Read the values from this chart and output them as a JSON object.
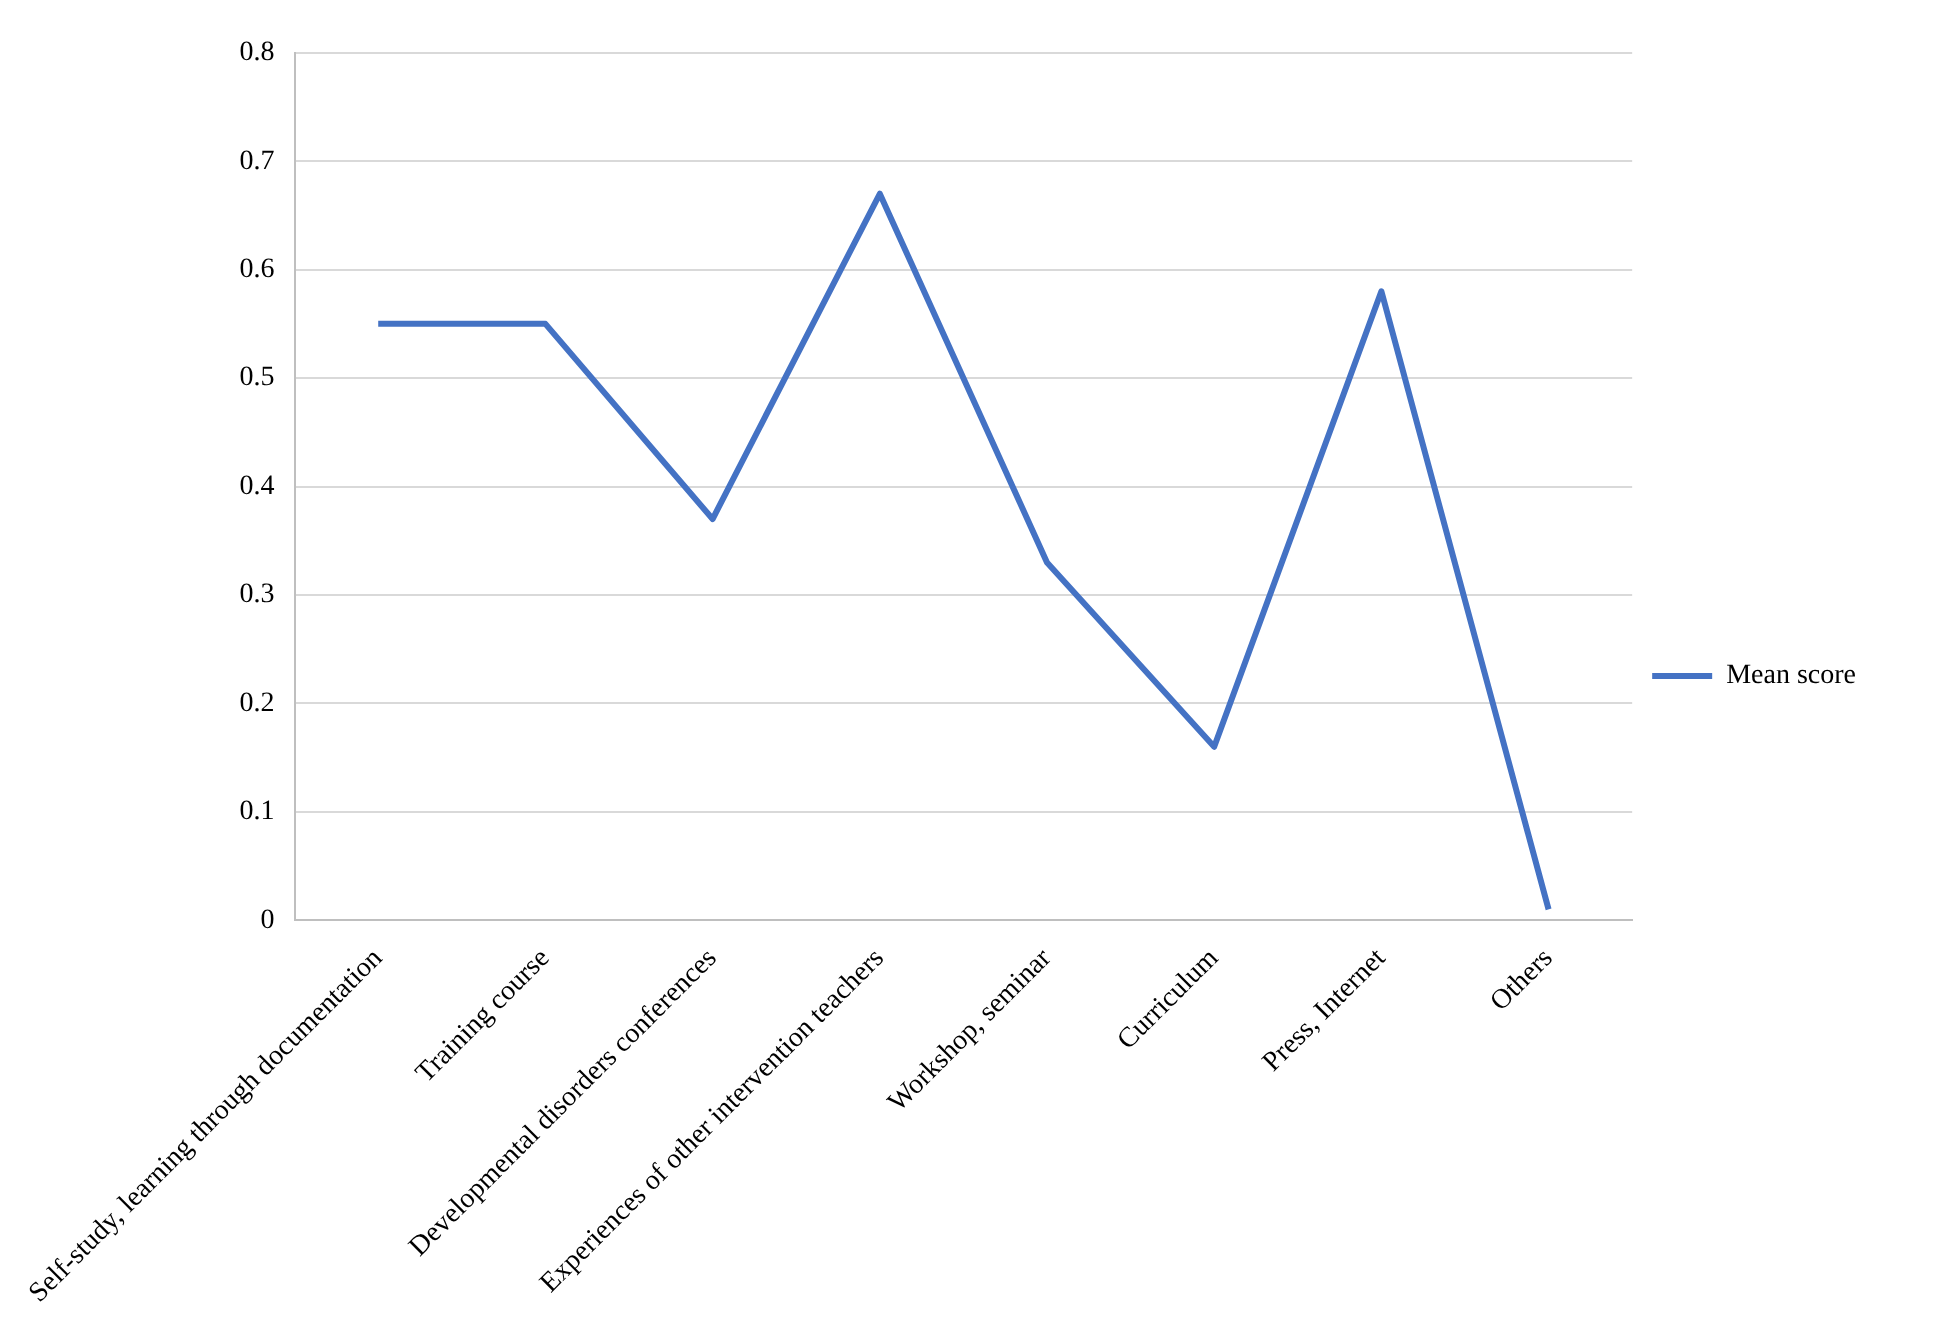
{
  "chart_data": {
    "type": "line",
    "categories": [
      "Self-study, learning through documentation",
      "Training course",
      "Developmental disorders conferences",
      "Experiences of other intervention teachers",
      "Workshop, seminar",
      "Curriculum",
      "Press, Internet",
      "Others"
    ],
    "series": [
      {
        "name": "Mean score",
        "color": "#4472c4",
        "values": [
          0.55,
          0.55,
          0.37,
          0.67,
          0.33,
          0.16,
          0.58,
          0.01
        ]
      }
    ],
    "ylim": [
      0,
      0.8
    ],
    "yticks": [
      0,
      0.1,
      0.2,
      0.3,
      0.4,
      0.5,
      0.6,
      0.7,
      0.8
    ],
    "grid": "y",
    "legend": "right",
    "marker": "none",
    "line_style": "solid"
  }
}
